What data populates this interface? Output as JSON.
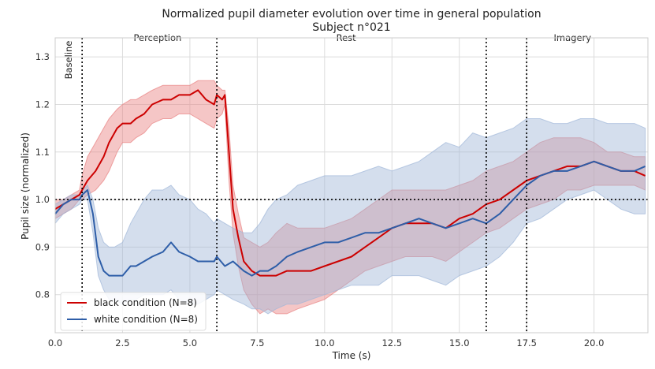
{
  "chart_data": {
    "type": "line",
    "title": "Normalized pupil diameter evolution over time in general population",
    "subtitle": "Subject n°021",
    "xlabel": "Time (s)",
    "ylabel": "Pupil size (normalized)",
    "xlim": [
      0,
      22
    ],
    "ylim": [
      0.72,
      1.34
    ],
    "xticks": [
      0.0,
      2.5,
      5.0,
      7.5,
      10.0,
      12.5,
      15.0,
      17.5,
      20.0
    ],
    "xtick_labels": [
      "0.0",
      "2.5",
      "5.0",
      "7.5",
      "10.0",
      "12.5",
      "15.0",
      "17.5",
      "20.0"
    ],
    "yticks": [
      0.8,
      0.9,
      1.0,
      1.1,
      1.2,
      1.3
    ],
    "ytick_labels": [
      "0.8",
      "0.9",
      "1.0",
      "1.1",
      "1.2",
      "1.3"
    ],
    "grid": true,
    "legend_position": "lower-left",
    "baseline_y": 1.0,
    "phase_boundaries": [
      1.0,
      6.0,
      16.0,
      17.5
    ],
    "phases": [
      {
        "label": "Baseline",
        "x": 0.5,
        "rotated": true
      },
      {
        "label": "Perception",
        "x": 3.8,
        "rotated": false
      },
      {
        "label": "Rest",
        "x": 10.8,
        "rotated": false
      },
      {
        "label": "Imagery",
        "x": 19.2,
        "rotated": false
      }
    ],
    "series": [
      {
        "name": "black condition (N=8)",
        "color": "#cc0000",
        "band_color": "#e88080",
        "x": [
          0.0,
          0.3,
          0.6,
          0.9,
          1.0,
          1.2,
          1.5,
          1.8,
          2.0,
          2.3,
          2.5,
          2.8,
          3.0,
          3.3,
          3.6,
          4.0,
          4.3,
          4.6,
          5.0,
          5.3,
          5.6,
          5.9,
          6.0,
          6.2,
          6.3,
          6.45,
          6.6,
          6.8,
          7.0,
          7.3,
          7.6,
          7.9,
          8.2,
          8.6,
          9.0,
          9.5,
          10.0,
          10.5,
          11.0,
          11.5,
          12.0,
          12.5,
          13.0,
          13.5,
          14.0,
          14.5,
          15.0,
          15.5,
          16.0,
          16.5,
          17.0,
          17.5,
          18.0,
          18.5,
          19.0,
          19.5,
          20.0,
          20.5,
          21.0,
          21.5,
          21.9
        ],
        "y": [
          0.98,
          0.99,
          1.0,
          1.01,
          1.02,
          1.04,
          1.06,
          1.09,
          1.12,
          1.15,
          1.16,
          1.16,
          1.17,
          1.18,
          1.2,
          1.21,
          1.21,
          1.22,
          1.22,
          1.23,
          1.21,
          1.2,
          1.22,
          1.21,
          1.22,
          1.1,
          0.98,
          0.92,
          0.87,
          0.85,
          0.84,
          0.84,
          0.84,
          0.85,
          0.85,
          0.85,
          0.86,
          0.87,
          0.88,
          0.9,
          0.92,
          0.94,
          0.95,
          0.95,
          0.95,
          0.94,
          0.96,
          0.97,
          0.99,
          1.0,
          1.02,
          1.04,
          1.05,
          1.06,
          1.07,
          1.07,
          1.08,
          1.07,
          1.06,
          1.06,
          1.05
        ],
        "y_upper": [
          1.0,
          1.0,
          1.01,
          1.02,
          1.05,
          1.09,
          1.12,
          1.15,
          1.17,
          1.19,
          1.2,
          1.21,
          1.21,
          1.22,
          1.23,
          1.24,
          1.24,
          1.24,
          1.24,
          1.25,
          1.25,
          1.25,
          1.24,
          1.23,
          1.23,
          1.15,
          1.03,
          0.97,
          0.92,
          0.91,
          0.9,
          0.91,
          0.93,
          0.95,
          0.94,
          0.94,
          0.94,
          0.95,
          0.96,
          0.98,
          1.0,
          1.02,
          1.02,
          1.02,
          1.02,
          1.02,
          1.03,
          1.04,
          1.06,
          1.07,
          1.08,
          1.1,
          1.12,
          1.13,
          1.13,
          1.13,
          1.12,
          1.1,
          1.1,
          1.09,
          1.09
        ],
        "y_lower": [
          0.96,
          0.97,
          0.98,
          1.0,
          1.0,
          1.01,
          1.02,
          1.04,
          1.06,
          1.1,
          1.12,
          1.12,
          1.13,
          1.14,
          1.16,
          1.17,
          1.17,
          1.18,
          1.18,
          1.17,
          1.16,
          1.15,
          1.17,
          1.18,
          1.2,
          1.04,
          0.93,
          0.86,
          0.81,
          0.78,
          0.76,
          0.77,
          0.76,
          0.76,
          0.77,
          0.78,
          0.79,
          0.81,
          0.83,
          0.85,
          0.86,
          0.87,
          0.88,
          0.88,
          0.88,
          0.87,
          0.89,
          0.91,
          0.93,
          0.94,
          0.96,
          0.98,
          0.99,
          1.0,
          1.02,
          1.02,
          1.03,
          1.03,
          1.03,
          1.03,
          1.02
        ]
      },
      {
        "name": "white condition (N=8)",
        "color": "#2e5ea8",
        "band_color": "#9fb6d8",
        "x": [
          0.0,
          0.3,
          0.6,
          0.9,
          1.0,
          1.2,
          1.4,
          1.6,
          1.8,
          2.0,
          2.2,
          2.5,
          2.8,
          3.0,
          3.3,
          3.6,
          4.0,
          4.3,
          4.6,
          5.0,
          5.3,
          5.6,
          5.9,
          6.0,
          6.3,
          6.6,
          7.0,
          7.3,
          7.6,
          7.9,
          8.2,
          8.6,
          9.0,
          9.5,
          10.0,
          10.5,
          11.0,
          11.5,
          12.0,
          12.5,
          13.0,
          13.5,
          14.0,
          14.5,
          15.0,
          15.5,
          16.0,
          16.5,
          17.0,
          17.5,
          18.0,
          18.5,
          19.0,
          19.5,
          20.0,
          20.5,
          21.0,
          21.5,
          21.9
        ],
        "y": [
          0.97,
          0.99,
          1.0,
          1.0,
          1.01,
          1.02,
          0.97,
          0.88,
          0.85,
          0.84,
          0.84,
          0.84,
          0.86,
          0.86,
          0.87,
          0.88,
          0.89,
          0.91,
          0.89,
          0.88,
          0.87,
          0.87,
          0.87,
          0.88,
          0.86,
          0.87,
          0.85,
          0.84,
          0.85,
          0.85,
          0.86,
          0.88,
          0.89,
          0.9,
          0.91,
          0.91,
          0.92,
          0.93,
          0.93,
          0.94,
          0.95,
          0.96,
          0.95,
          0.94,
          0.95,
          0.96,
          0.95,
          0.97,
          1.0,
          1.03,
          1.05,
          1.06,
          1.06,
          1.07,
          1.08,
          1.07,
          1.06,
          1.06,
          1.07
        ],
        "y_upper": [
          0.99,
          1.0,
          1.01,
          1.01,
          1.02,
          1.03,
          1.0,
          0.94,
          0.91,
          0.9,
          0.9,
          0.91,
          0.95,
          0.97,
          1.0,
          1.02,
          1.02,
          1.03,
          1.01,
          1.0,
          0.98,
          0.97,
          0.95,
          0.96,
          0.95,
          0.94,
          0.93,
          0.93,
          0.95,
          0.98,
          1.0,
          1.01,
          1.03,
          1.04,
          1.05,
          1.05,
          1.05,
          1.06,
          1.07,
          1.06,
          1.07,
          1.08,
          1.1,
          1.12,
          1.11,
          1.14,
          1.13,
          1.14,
          1.15,
          1.17,
          1.17,
          1.16,
          1.16,
          1.17,
          1.17,
          1.16,
          1.16,
          1.16,
          1.15
        ],
        "y_lower": [
          0.95,
          0.97,
          0.98,
          0.99,
          1.0,
          1.0,
          0.93,
          0.84,
          0.81,
          0.79,
          0.79,
          0.78,
          0.79,
          0.79,
          0.8,
          0.8,
          0.8,
          0.81,
          0.79,
          0.78,
          0.78,
          0.79,
          0.8,
          0.81,
          0.8,
          0.79,
          0.78,
          0.77,
          0.77,
          0.76,
          0.77,
          0.78,
          0.78,
          0.79,
          0.8,
          0.81,
          0.82,
          0.82,
          0.82,
          0.84,
          0.84,
          0.84,
          0.83,
          0.82,
          0.84,
          0.85,
          0.86,
          0.88,
          0.91,
          0.95,
          0.96,
          0.98,
          1.0,
          1.01,
          1.02,
          1.0,
          0.98,
          0.97,
          0.97
        ]
      }
    ]
  }
}
